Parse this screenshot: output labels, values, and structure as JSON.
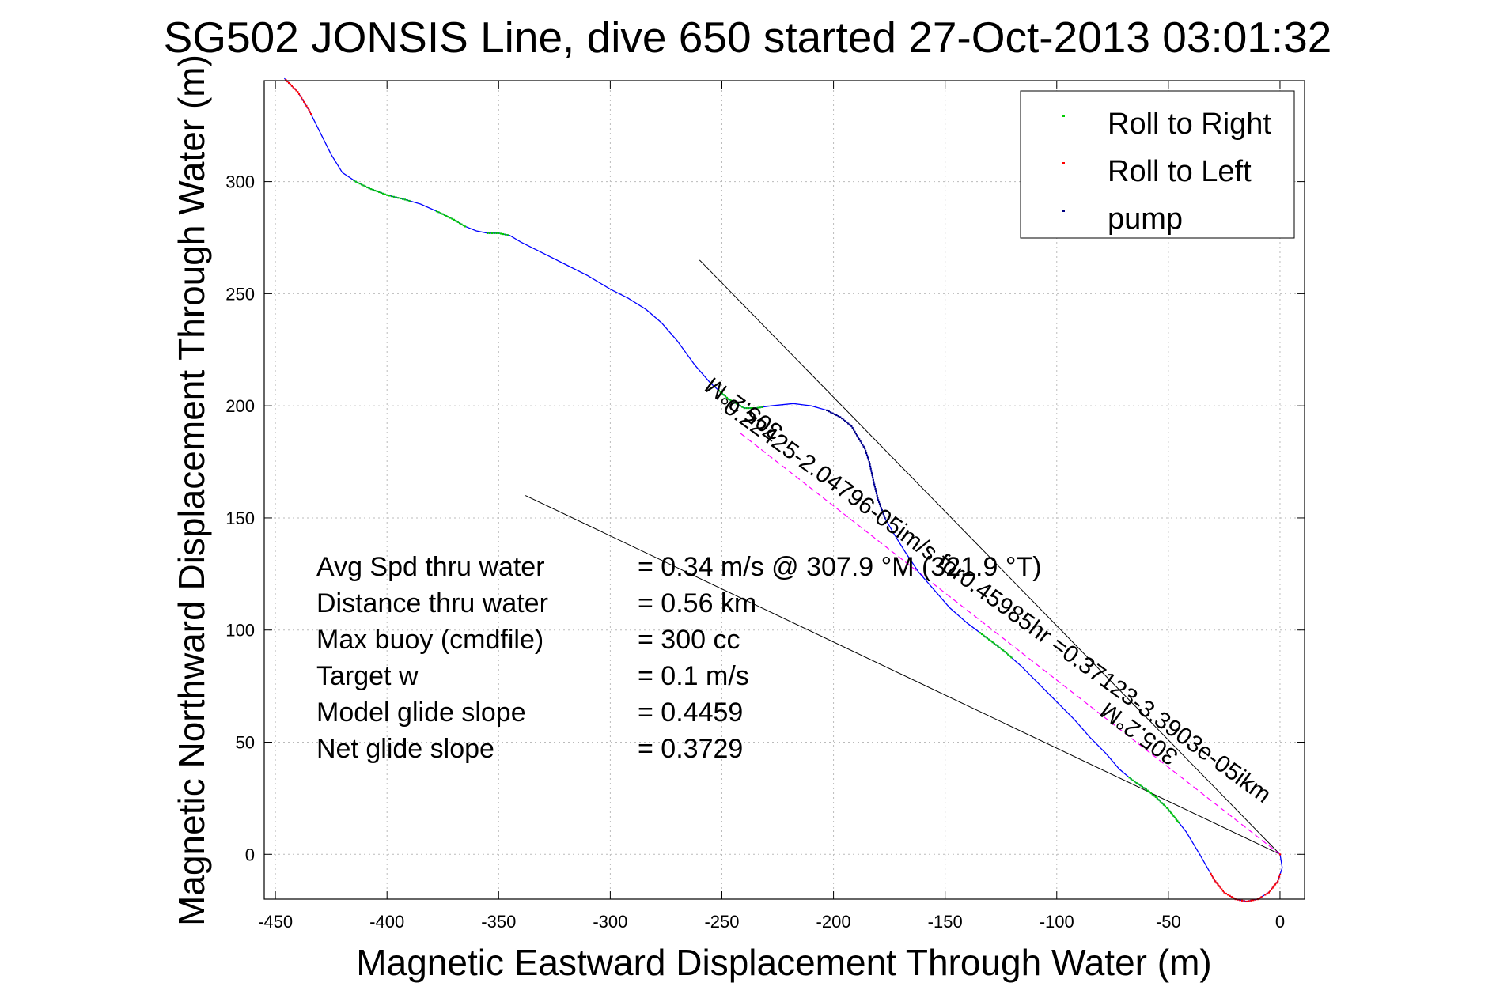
{
  "chart_data": {
    "type": "scatter",
    "title": "SG502 JONSIS Line, dive 650 started 27-Oct-2013 03:01:32",
    "xlabel": "Magnetic Eastward Displacement Through Water (m)",
    "ylabel": "Magnetic Northward Displacement Through Water (m)",
    "xlim": [
      -455,
      11
    ],
    "ylim": [
      -20,
      345
    ],
    "xticks": [
      -450,
      -400,
      -350,
      -300,
      -250,
      -200,
      -150,
      -100,
      -50,
      0
    ],
    "yticks": [
      0,
      50,
      100,
      150,
      200,
      250,
      300
    ],
    "grid": true,
    "legend_position": "top-right",
    "legend": [
      {
        "label": "Roll to Right",
        "color": "#00cc00"
      },
      {
        "label": "Roll to Left",
        "color": "#ff0000"
      },
      {
        "label": "pump",
        "color": "#000080"
      }
    ],
    "track": {
      "color": "#0000ff",
      "points": [
        [
          0,
          0
        ],
        [
          1,
          -6
        ],
        [
          -1,
          -12
        ],
        [
          -5,
          -17
        ],
        [
          -10,
          -20
        ],
        [
          -15,
          -21
        ],
        [
          -20,
          -20
        ],
        [
          -25,
          -17
        ],
        [
          -29,
          -12
        ],
        [
          -32,
          -7
        ],
        [
          -36,
          0
        ],
        [
          -39,
          5
        ],
        [
          -42,
          10
        ],
        [
          -46,
          15
        ],
        [
          -50,
          20
        ],
        [
          -55,
          25
        ],
        [
          -60,
          29
        ],
        [
          -66,
          33
        ],
        [
          -72,
          38
        ],
        [
          -78,
          45
        ],
        [
          -85,
          52
        ],
        [
          -92,
          60
        ],
        [
          -100,
          68
        ],
        [
          -108,
          76
        ],
        [
          -116,
          84
        ],
        [
          -124,
          91
        ],
        [
          -132,
          97
        ],
        [
          -140,
          103
        ],
        [
          -148,
          110
        ],
        [
          -155,
          118
        ],
        [
          -162,
          126
        ],
        [
          -168,
          135
        ],
        [
          -173,
          143
        ],
        [
          -177,
          150
        ],
        [
          -180,
          158
        ],
        [
          -182,
          166
        ],
        [
          -184,
          175
        ],
        [
          -186,
          181
        ],
        [
          -189,
          186
        ],
        [
          -192,
          191
        ],
        [
          -197,
          195
        ],
        [
          -203,
          198
        ],
        [
          -210,
          200
        ],
        [
          -218,
          201
        ],
        [
          -228,
          200
        ],
        [
          -235,
          199
        ],
        [
          -240,
          199
        ],
        [
          -247,
          203
        ],
        [
          -255,
          210
        ],
        [
          -262,
          218
        ],
        [
          -270,
          229
        ],
        [
          -277,
          237
        ],
        [
          -284,
          243
        ],
        [
          -292,
          248
        ],
        [
          -300,
          252
        ],
        [
          -310,
          258
        ],
        [
          -320,
          263
        ],
        [
          -330,
          268
        ],
        [
          -340,
          273
        ],
        [
          -345,
          276
        ],
        [
          -350,
          277
        ],
        [
          -355,
          277
        ],
        [
          -360,
          278
        ],
        [
          -365,
          280
        ],
        [
          -370,
          283
        ],
        [
          -376,
          286
        ],
        [
          -385,
          290
        ],
        [
          -392,
          292
        ],
        [
          -400,
          294
        ],
        [
          -408,
          297
        ],
        [
          -414,
          300
        ],
        [
          -420,
          304
        ],
        [
          -425,
          312
        ],
        [
          -430,
          322
        ],
        [
          -435,
          332
        ],
        [
          -440,
          340
        ],
        [
          -446,
          346
        ]
      ]
    },
    "marker_segments": [
      {
        "series": "Roll to Right",
        "x_ranges": [
          [
            -415,
            -390
          ],
          [
            -378,
            -365
          ],
          [
            -355,
            -346
          ],
          [
            -252,
            -232
          ],
          [
            -135,
            -120
          ],
          [
            -68,
            -45
          ]
        ]
      },
      {
        "series": "Roll to Left",
        "x_ranges": [
          [
            -446,
            -434
          ],
          [
            -31,
            -8
          ],
          [
            -7,
            0
          ]
        ]
      },
      {
        "series": "pump",
        "x_ranges": [
          [
            -203,
            -182
          ],
          [
            -182,
            -177
          ]
        ]
      }
    ],
    "heading_lines": [
      {
        "x1": 0,
        "y1": 0,
        "x2": -260,
        "y2": 265
      },
      {
        "x1": 0,
        "y1": 0,
        "x2": -338,
        "y2": 160
      }
    ],
    "current_vector": {
      "color": "#ff00ff",
      "x1": 0,
      "y1": 0,
      "x2": -242,
      "y2": 188
    },
    "annotations": [
      {
        "text": "0.22425-2.04796-05im/s for0.45985hr =0.37123-3.3903e-05ikm",
        "x": -250,
        "y": 198,
        "rotation": 36,
        "size": 30
      },
      {
        "text": "305.2°M",
        "x": -45,
        "y": 45,
        "rotation": 216,
        "size": 30
      },
      {
        "text": "305.2°M",
        "x": -222,
        "y": 190,
        "rotation": 216,
        "size": 30
      }
    ],
    "stats": [
      {
        "label": "Avg Spd thru water",
        "value": "=  0.34 m/s @ 307.9 °M (321.9 °T)"
      },
      {
        "label": "Distance thru water",
        "value": "=  0.56 km"
      },
      {
        "label": "Max buoy (cmdfile)",
        "value": "= 300 cc"
      },
      {
        "label": "Target w",
        "value": "= 0.1 m/s"
      },
      {
        "label": "Model glide slope",
        "value": "= 0.4459"
      },
      {
        "label": "Net glide slope",
        "value": "= 0.3729"
      }
    ]
  }
}
